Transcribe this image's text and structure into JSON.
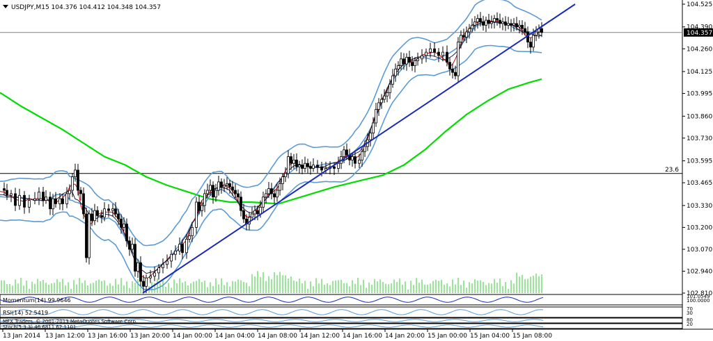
{
  "chart_data": {
    "type": "candlestick",
    "title": "USDJPY,M15",
    "ohlc_header": "104.376 104.412 104.348 104.357",
    "price_axis": {
      "ticks": [
        "104.525",
        "104.390",
        "104.260",
        "104.125",
        "103.995",
        "103.860",
        "103.730",
        "103.595",
        "103.465",
        "103.330",
        "103.200",
        "103.070",
        "102.940",
        "102.810"
      ],
      "range": [
        102.81,
        104.525
      ]
    },
    "current_price": "104.357",
    "fib_label": "23.6",
    "fib_level": 103.52,
    "time_axis": [
      "13 Jan 2014",
      "13 Jan 12:00",
      "13 Jan 16:00",
      "13 Jan 20:00",
      "14 Jan 00:00",
      "14 Jan 04:00",
      "14 Jan 08:00",
      "14 Jan 12:00",
      "14 Jan 16:00",
      "14 Jan 20:00",
      "15 Jan 00:00",
      "15 Jan 04:00",
      "15 Jan 08:00"
    ],
    "close_path": [
      [
        0,
        103.43
      ],
      [
        6,
        103.42
      ],
      [
        10,
        103.39
      ],
      [
        16,
        103.4
      ],
      [
        22,
        103.33
      ],
      [
        28,
        103.39
      ],
      [
        35,
        103.32
      ],
      [
        42,
        103.36
      ],
      [
        50,
        103.37
      ],
      [
        56,
        103.41
      ],
      [
        62,
        103.36
      ],
      [
        66,
        103.38
      ],
      [
        72,
        103.31
      ],
      [
        76,
        103.37
      ],
      [
        80,
        103.34
      ],
      [
        86,
        103.37
      ],
      [
        90,
        103.34
      ],
      [
        96,
        103.4
      ],
      [
        100,
        103.42
      ],
      [
        104,
        103.5
      ],
      [
        108,
        103.54
      ],
      [
        112,
        103.42
      ],
      [
        116,
        103.4
      ],
      [
        120,
        103.28
      ],
      [
        124,
        103.02
      ],
      [
        128,
        103.28
      ],
      [
        132,
        103.24
      ],
      [
        136,
        103.3
      ],
      [
        140,
        103.27
      ],
      [
        146,
        103.26
      ],
      [
        150,
        103.31
      ],
      [
        156,
        103.3
      ],
      [
        162,
        103.31
      ],
      [
        166,
        103.28
      ],
      [
        170,
        103.25
      ],
      [
        174,
        103.2
      ],
      [
        178,
        103.22
      ],
      [
        182,
        103.12
      ],
      [
        186,
        103.07
      ],
      [
        190,
        103.1
      ],
      [
        194,
        102.94
      ],
      [
        198,
        102.99
      ],
      [
        202,
        102.88
      ],
      [
        206,
        102.85
      ],
      [
        210,
        102.9
      ],
      [
        216,
        102.91
      ],
      [
        222,
        102.93
      ],
      [
        228,
        102.96
      ],
      [
        234,
        102.98
      ],
      [
        240,
        103.0
      ],
      [
        246,
        103.04
      ],
      [
        252,
        103.06
      ],
      [
        258,
        103.1
      ],
      [
        262,
        103.05
      ],
      [
        268,
        103.13
      ],
      [
        272,
        103.15
      ],
      [
        276,
        103.2
      ],
      [
        282,
        103.35
      ],
      [
        286,
        103.3
      ],
      [
        290,
        103.33
      ],
      [
        294,
        103.4
      ],
      [
        298,
        103.42
      ],
      [
        302,
        103.45
      ],
      [
        306,
        103.38
      ],
      [
        310,
        103.42
      ],
      [
        314,
        103.47
      ],
      [
        318,
        103.44
      ],
      [
        322,
        103.45
      ],
      [
        326,
        103.46
      ],
      [
        330,
        103.44
      ],
      [
        334,
        103.42
      ],
      [
        338,
        103.4
      ],
      [
        342,
        103.38
      ],
      [
        346,
        103.3
      ],
      [
        350,
        103.25
      ],
      [
        354,
        103.22
      ],
      [
        358,
        103.26
      ],
      [
        362,
        103.28
      ],
      [
        366,
        103.3
      ],
      [
        370,
        103.28
      ],
      [
        374,
        103.32
      ],
      [
        378,
        103.38
      ],
      [
        382,
        103.4
      ],
      [
        386,
        103.43
      ],
      [
        390,
        103.4
      ],
      [
        394,
        103.38
      ],
      [
        398,
        103.42
      ],
      [
        402,
        103.46
      ],
      [
        406,
        103.5
      ],
      [
        410,
        103.52
      ],
      [
        414,
        103.62
      ],
      [
        418,
        103.58
      ],
      [
        422,
        103.6
      ],
      [
        426,
        103.56
      ],
      [
        430,
        103.57
      ],
      [
        434,
        103.55
      ],
      [
        438,
        103.58
      ],
      [
        442,
        103.56
      ],
      [
        446,
        103.55
      ],
      [
        450,
        103.57
      ],
      [
        456,
        103.56
      ],
      [
        462,
        103.54
      ],
      [
        468,
        103.55
      ],
      [
        474,
        103.56
      ],
      [
        480,
        103.55
      ],
      [
        486,
        103.58
      ],
      [
        490,
        103.62
      ],
      [
        494,
        103.66
      ],
      [
        498,
        103.63
      ],
      [
        502,
        103.6
      ],
      [
        506,
        103.62
      ],
      [
        510,
        103.58
      ],
      [
        516,
        103.6
      ],
      [
        520,
        103.65
      ],
      [
        524,
        103.68
      ],
      [
        528,
        103.72
      ],
      [
        532,
        103.76
      ],
      [
        536,
        103.82
      ],
      [
        540,
        103.9
      ],
      [
        544,
        103.94
      ],
      [
        548,
        103.96
      ],
      [
        552,
        103.98
      ],
      [
        556,
        104.0
      ],
      [
        560,
        104.05
      ],
      [
        564,
        104.1
      ],
      [
        568,
        104.14
      ],
      [
        572,
        104.16
      ],
      [
        576,
        104.2
      ],
      [
        580,
        104.17
      ],
      [
        584,
        104.21
      ],
      [
        588,
        104.18
      ],
      [
        592,
        104.16
      ],
      [
        596,
        104.19
      ],
      [
        600,
        104.2
      ],
      [
        606,
        104.22
      ],
      [
        612,
        104.24
      ],
      [
        618,
        104.26
      ],
      [
        624,
        104.24
      ],
      [
        630,
        104.22
      ],
      [
        636,
        104.24
      ],
      [
        642,
        104.18
      ],
      [
        646,
        104.14
      ],
      [
        650,
        104.12
      ],
      [
        654,
        104.1
      ],
      [
        658,
        104.3
      ],
      [
        662,
        104.34
      ],
      [
        666,
        104.33
      ],
      [
        670,
        104.36
      ],
      [
        674,
        104.38
      ],
      [
        678,
        104.4
      ],
      [
        682,
        104.42
      ],
      [
        686,
        104.44
      ],
      [
        690,
        104.42
      ],
      [
        694,
        104.4
      ],
      [
        698,
        104.43
      ],
      [
        702,
        104.41
      ],
      [
        706,
        104.42
      ],
      [
        710,
        104.44
      ],
      [
        714,
        104.43
      ],
      [
        718,
        104.41
      ],
      [
        722,
        104.42
      ],
      [
        726,
        104.4
      ],
      [
        730,
        104.41
      ],
      [
        734,
        104.4
      ],
      [
        738,
        104.41
      ],
      [
        742,
        104.39
      ],
      [
        746,
        104.4
      ],
      [
        750,
        104.38
      ],
      [
        754,
        104.36
      ],
      [
        758,
        104.3
      ],
      [
        762,
        104.27
      ],
      [
        766,
        104.34
      ],
      [
        770,
        104.36
      ],
      [
        774,
        104.38
      ],
      [
        778,
        104.357
      ]
    ],
    "ma_green": [
      [
        0,
        104.0
      ],
      [
        30,
        103.92
      ],
      [
        60,
        103.85
      ],
      [
        90,
        103.78
      ],
      [
        120,
        103.7
      ],
      [
        150,
        103.62
      ],
      [
        180,
        103.57
      ],
      [
        210,
        103.5
      ],
      [
        240,
        103.45
      ],
      [
        270,
        103.41
      ],
      [
        300,
        103.37
      ],
      [
        330,
        103.35
      ],
      [
        360,
        103.35
      ],
      [
        400,
        103.34
      ],
      [
        440,
        103.39
      ],
      [
        480,
        103.44
      ],
      [
        520,
        103.48
      ],
      [
        550,
        103.51
      ],
      [
        580,
        103.57
      ],
      [
        610,
        103.66
      ],
      [
        640,
        103.77
      ],
      [
        670,
        103.87
      ],
      [
        700,
        103.95
      ],
      [
        730,
        104.02
      ],
      [
        760,
        104.06
      ],
      [
        778,
        104.08
      ]
    ],
    "trendline": [
      [
        205,
        102.81
      ],
      [
        826,
        104.525
      ]
    ],
    "resistance_h": [
      [
        0,
        104.357
      ],
      [
        980,
        104.357
      ]
    ],
    "indicators": [
      {
        "label": "Momentum(14) 99.9646",
        "right": "101.0549 / 100.0000"
      },
      {
        "label": "RSI(14) 52.5419",
        "right": "70 / 30"
      },
      {
        "label": "MFX Traders. © 2001-2013 MetaQuotes Software Corp.",
        "right": "80 / 20"
      },
      {
        "label": "Stoch(5,3,3) 46.6811 62.1101",
        "right": ""
      }
    ]
  },
  "header": {
    "dropdown_icon": "triangle-down-icon",
    "title": "USDJPY,M15",
    "ohlc": "104.376 104.412 104.348 104.357"
  },
  "colors": {
    "candles": "#000000",
    "ma_green": "#00dd00",
    "bollinger": "#5b9bd5",
    "trendline": "#1a2ab8",
    "red_ma": "#d00000",
    "volume": "#33cc33",
    "price_box": "#000000"
  }
}
